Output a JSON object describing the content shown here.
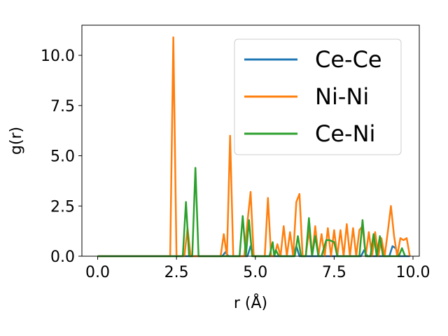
{
  "chart_data": {
    "type": "line",
    "title": "",
    "xlabel": "r (Å)",
    "ylabel": "g(r)",
    "xlim": [
      -0.5,
      10.2
    ],
    "ylim": [
      0,
      11.5
    ],
    "xticks": [
      0.0,
      2.5,
      5.0,
      7.5,
      10.0
    ],
    "xtick_labels": [
      "0.0",
      "2.5",
      "5.0",
      "7.5",
      "10.0"
    ],
    "yticks": [
      0.0,
      2.5,
      5.0,
      7.5,
      10.0
    ],
    "ytick_labels": [
      "0.0",
      "2.5",
      "5.0",
      "7.5",
      "10.0"
    ],
    "grid": false,
    "legend_position": "top-right",
    "series": [
      {
        "name": "Ce-Ce",
        "color": "#1f77b4",
        "x": [
          0.0,
          3.95,
          4.05,
          4.15,
          4.75,
          4.85,
          4.95,
          6.2,
          6.3,
          6.4,
          8.35,
          8.45,
          8.55,
          9.25,
          9.35,
          9.45,
          9.55,
          9.9
        ],
        "y": [
          0.0,
          0.0,
          0.2,
          0.0,
          0.0,
          0.5,
          0.0,
          0.0,
          0.5,
          0.0,
          0.0,
          0.3,
          0.0,
          0.0,
          0.5,
          0.4,
          0.0,
          0.0
        ]
      },
      {
        "name": "Ni-Ni",
        "color": "#ff7f0e",
        "x": [
          0.0,
          2.3,
          2.4,
          2.5,
          2.75,
          2.85,
          2.95,
          3.9,
          4.0,
          4.1,
          4.2,
          4.3,
          4.65,
          4.75,
          4.85,
          4.95,
          5.3,
          5.4,
          5.5,
          5.6,
          5.7,
          5.8,
          5.9,
          6.0,
          6.1,
          6.2,
          6.3,
          6.4,
          6.5,
          6.6,
          6.7,
          6.8,
          6.9,
          7.0,
          7.1,
          7.2,
          7.3,
          7.4,
          7.5,
          7.6,
          7.7,
          7.8,
          7.9,
          8.0,
          8.1,
          8.2,
          8.3,
          8.4,
          8.5,
          8.6,
          8.7,
          8.8,
          8.9,
          9.0,
          9.1,
          9.2,
          9.3,
          9.4,
          9.5,
          9.6,
          9.7,
          9.8,
          9.9
        ],
        "y": [
          0.0,
          0.0,
          10.9,
          0.0,
          0.0,
          1.4,
          0.0,
          0.0,
          1.1,
          0.0,
          6.0,
          0.0,
          0.0,
          1.7,
          3.2,
          0.0,
          0.0,
          2.9,
          0.0,
          0.0,
          0.6,
          0.0,
          1.5,
          0.0,
          1.2,
          0.0,
          2.7,
          3.1,
          0.0,
          0.0,
          1.3,
          0.0,
          1.5,
          0.0,
          1.1,
          0.0,
          1.4,
          0.0,
          1.3,
          0.0,
          1.3,
          0.0,
          1.6,
          0.0,
          1.4,
          0.0,
          1.3,
          1.5,
          0.0,
          1.2,
          0.0,
          1.2,
          0.0,
          0.9,
          0.0,
          1.2,
          2.5,
          1.0,
          0.0,
          0.9,
          0.8,
          0.9,
          0.0
        ]
      },
      {
        "name": "Ce-Ni",
        "color": "#2ca02c",
        "x": [
          0.0,
          2.7,
          2.8,
          2.9,
          3.0,
          3.1,
          3.2,
          4.5,
          4.6,
          4.7,
          4.8,
          4.9,
          5.45,
          5.55,
          5.6,
          5.65,
          5.75,
          6.25,
          6.35,
          6.45,
          6.6,
          6.7,
          6.8,
          6.9,
          7.0,
          7.1,
          7.25,
          7.35,
          7.5,
          7.6,
          7.7,
          8.3,
          8.4,
          8.5,
          8.65,
          8.75,
          8.85,
          8.95,
          9.05,
          9.55,
          9.65,
          9.75
        ],
        "y": [
          0.0,
          0.0,
          2.7,
          0.0,
          0.0,
          4.4,
          0.0,
          0.0,
          2.0,
          0.0,
          1.8,
          0.0,
          0.0,
          0.7,
          0.0,
          0.3,
          0.0,
          0.0,
          1.0,
          0.0,
          0.0,
          1.9,
          0.0,
          1.0,
          0.0,
          0.0,
          0.8,
          0.8,
          0.7,
          0.0,
          0.0,
          0.0,
          1.8,
          0.0,
          0.0,
          1.1,
          0.0,
          1.0,
          0.0,
          0.0,
          0.4,
          0.0
        ]
      }
    ]
  }
}
